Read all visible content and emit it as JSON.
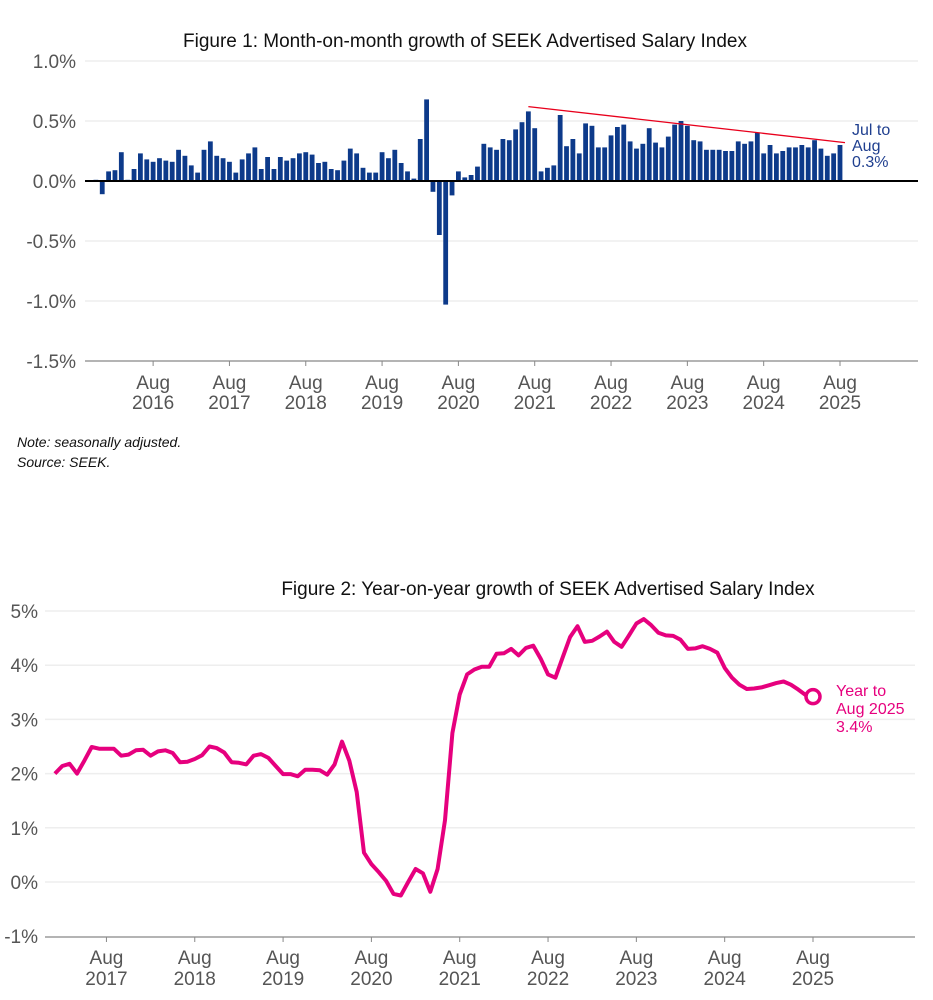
{
  "chart_data": [
    {
      "type": "bar",
      "title": "Figure 1: Month-on-month growth of SEEK Advertised Salary Index",
      "xlabel": "",
      "ylabel": "",
      "ylim": [
        -1.5,
        1.0
      ],
      "y_ticks": [
        1.0,
        0.5,
        0.0,
        -0.5,
        -1.0,
        -1.5
      ],
      "y_tick_labels": [
        "1.0%",
        "0.5%",
        "0.0%",
        "-0.5%",
        "-1.0%",
        "-1.5%"
      ],
      "x_tick_labels": [
        [
          "Aug",
          "2016"
        ],
        [
          "Aug",
          "2017"
        ],
        [
          "Aug",
          "2018"
        ],
        [
          "Aug",
          "2019"
        ],
        [
          "Aug",
          "2020"
        ],
        [
          "Aug",
          "2021"
        ],
        [
          "Aug",
          "2022"
        ],
        [
          "Aug",
          "2023"
        ],
        [
          "Aug",
          "2024"
        ],
        [
          "Aug",
          "2025"
        ]
      ],
      "start_month": "Nov 2015",
      "end_month": "Aug 2025",
      "values": [
        0.01,
        -0.11,
        0.08,
        0.09,
        0.24,
        0.01,
        0.1,
        0.23,
        0.18,
        0.16,
        0.19,
        0.17,
        0.16,
        0.26,
        0.21,
        0.13,
        0.07,
        0.26,
        0.33,
        0.21,
        0.19,
        0.16,
        0.07,
        0.18,
        0.23,
        0.28,
        0.1,
        0.2,
        0.1,
        0.2,
        0.17,
        0.19,
        0.23,
        0.24,
        0.22,
        0.15,
        0.16,
        0.1,
        0.09,
        0.17,
        0.27,
        0.23,
        0.11,
        0.07,
        0.07,
        0.24,
        0.19,
        0.26,
        0.15,
        0.08,
        0.02,
        0.35,
        0.68,
        -0.09,
        -0.45,
        -1.03,
        -0.12,
        0.08,
        0.03,
        0.05,
        0.12,
        0.31,
        0.28,
        0.26,
        0.35,
        0.34,
        0.43,
        0.49,
        0.58,
        0.44,
        0.08,
        0.11,
        0.13,
        0.55,
        0.29,
        0.35,
        0.23,
        0.48,
        0.46,
        0.28,
        0.28,
        0.38,
        0.45,
        0.47,
        0.33,
        0.27,
        0.31,
        0.44,
        0.32,
        0.28,
        0.37,
        0.47,
        0.5,
        0.46,
        0.34,
        0.33,
        0.26,
        0.26,
        0.26,
        0.25,
        0.25,
        0.33,
        0.31,
        0.33,
        0.4,
        0.23,
        0.3,
        0.23,
        0.25,
        0.28,
        0.28,
        0.3,
        0.28,
        0.34,
        0.27,
        0.21,
        0.23,
        0.3
      ],
      "trendline": {
        "from_index": 68,
        "from_value": 0.62,
        "to_index": 117,
        "to_value": 0.32,
        "color": "#e8001c"
      },
      "annotation": [
        "Jul to",
        "Aug",
        "0.3%"
      ],
      "bar_color": "#0d3a8a",
      "notes": [
        "Note: seasonally adjusted.",
        "Source: SEEK."
      ]
    },
    {
      "type": "line",
      "title": "Figure 2: Year-on-year growth of SEEK Advertised Salary Index",
      "xlabel": "",
      "ylabel": "",
      "ylim": [
        -1,
        5
      ],
      "y_ticks": [
        5,
        4,
        3,
        2,
        1,
        0,
        -1
      ],
      "y_tick_labels": [
        "5%",
        "4%",
        "3%",
        "2%",
        "1%",
        "0%",
        "-1%"
      ],
      "x_tick_labels": [
        [
          "Aug",
          "2017"
        ],
        [
          "Aug",
          "2018"
        ],
        [
          "Aug",
          "2019"
        ],
        [
          "Aug",
          "2020"
        ],
        [
          "Aug",
          "2021"
        ],
        [
          "Aug",
          "2022"
        ],
        [
          "Aug",
          "2023"
        ],
        [
          "Aug",
          "2024"
        ],
        [
          "Aug",
          "2025"
        ]
      ],
      "start_month": "Jan 2017",
      "end_month": "Aug 2025",
      "values": [
        2.0,
        2.14,
        2.18,
        2.0,
        2.24,
        2.49,
        2.46,
        2.46,
        2.46,
        2.33,
        2.35,
        2.43,
        2.44,
        2.33,
        2.41,
        2.43,
        2.38,
        2.21,
        2.22,
        2.27,
        2.34,
        2.5,
        2.47,
        2.39,
        2.21,
        2.2,
        2.17,
        2.33,
        2.36,
        2.29,
        2.14,
        1.99,
        1.99,
        1.95,
        2.07,
        2.07,
        2.06,
        1.98,
        2.17,
        2.59,
        2.24,
        1.66,
        0.54,
        0.33,
        0.18,
        0.02,
        -0.22,
        -0.25,
        0.0,
        0.24,
        0.16,
        -0.18,
        0.24,
        1.14,
        2.75,
        3.46,
        3.83,
        3.92,
        3.97,
        3.97,
        4.21,
        4.22,
        4.3,
        4.18,
        4.32,
        4.36,
        4.12,
        3.83,
        3.77,
        4.15,
        4.52,
        4.72,
        4.43,
        4.45,
        4.53,
        4.62,
        4.43,
        4.34,
        4.55,
        4.77,
        4.85,
        4.74,
        4.6,
        4.55,
        4.54,
        4.47,
        4.3,
        4.31,
        4.35,
        4.3,
        4.23,
        3.95,
        3.77,
        3.64,
        3.56,
        3.57,
        3.59,
        3.63,
        3.67,
        3.7,
        3.64,
        3.55,
        3.45,
        3.42
      ],
      "annotation": [
        "Year to",
        "Aug 2025",
        "3.4%"
      ],
      "line_color": "#e6007e"
    }
  ]
}
